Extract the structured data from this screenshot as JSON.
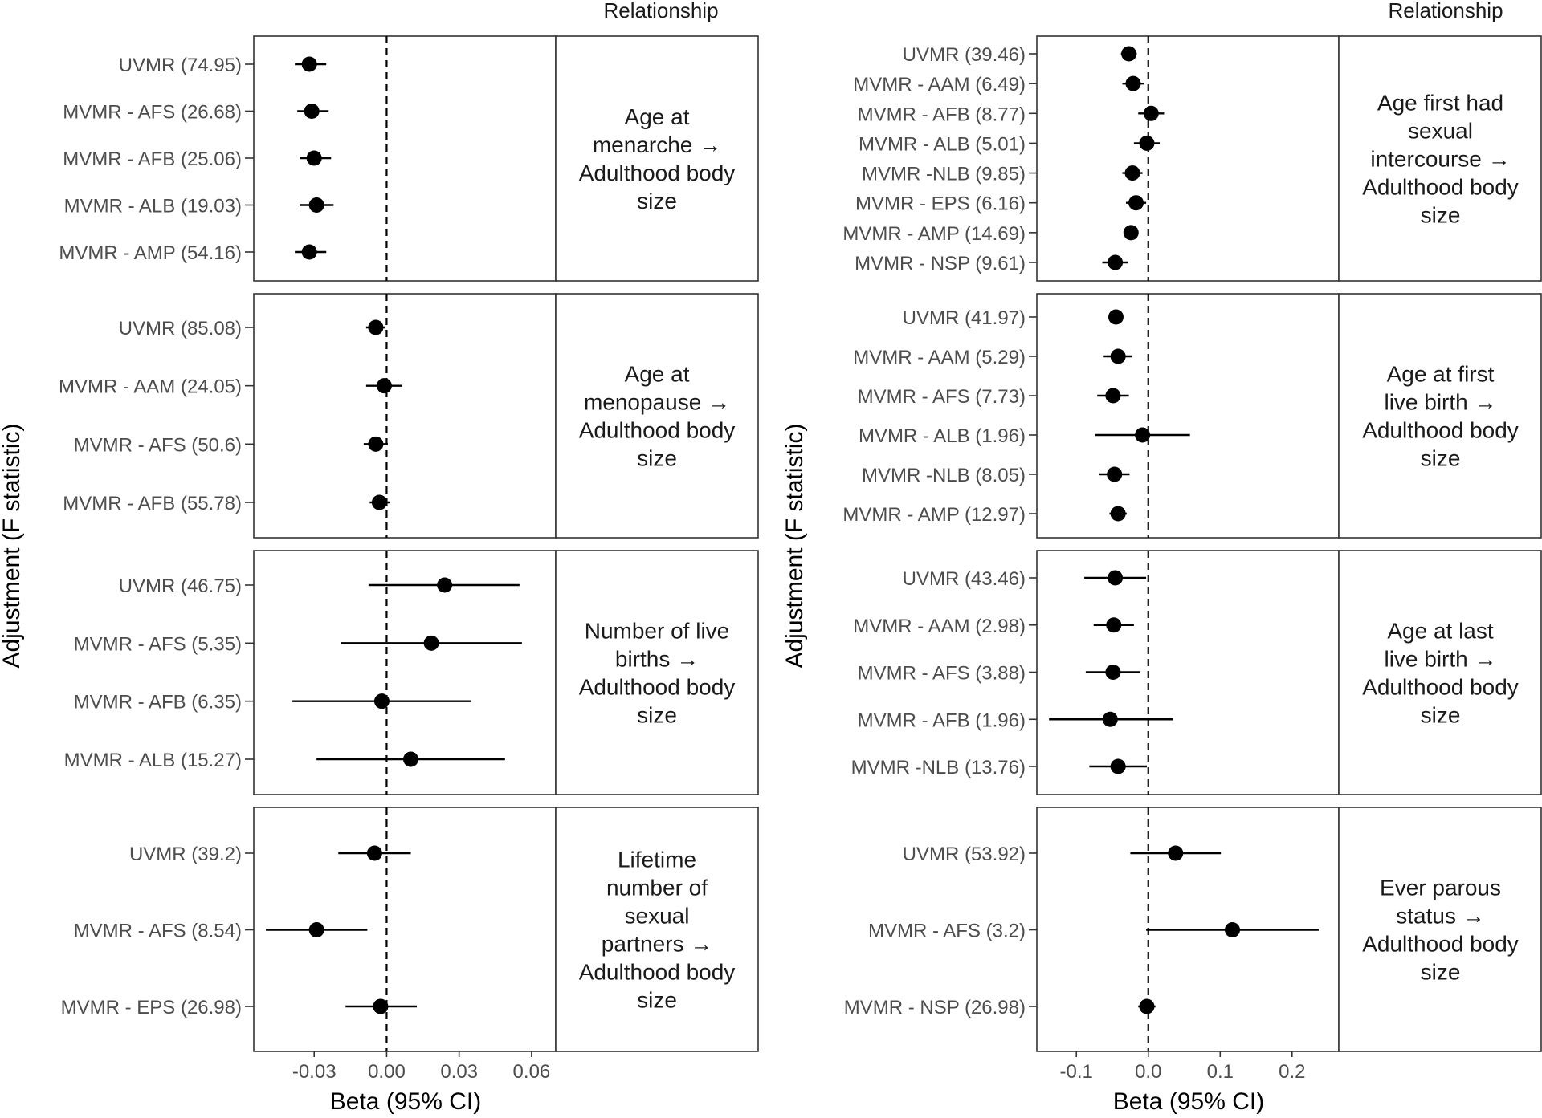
{
  "figure": {
    "y_axis_label": "Adjustment (F statistic)",
    "x_axis_label": "Beta (95% CI)",
    "strip_header": "Relationship"
  },
  "chart_data": [
    {
      "type": "forest",
      "column": "left",
      "xlim": [
        -0.055,
        0.07
      ],
      "xticks": [
        -0.03,
        0.0,
        0.03,
        0.06
      ],
      "xtick_labels": [
        "-0.03",
        "0.00",
        "0.03",
        "0.06"
      ],
      "reference_line": 0,
      "xlabel": "Beta (95% CI)",
      "ylabel": "Adjustment (F statistic)",
      "panels": [
        {
          "relationship": "Age at menarche → Adulthood body size",
          "strip_lines": [
            "Age at",
            "menarche →",
            "Adulthood body",
            "size"
          ],
          "rows": [
            {
              "label": "UVMR (74.95)",
              "beta": -0.032,
              "lo": -0.038,
              "hi": -0.025
            },
            {
              "label": "MVMR - AFS (26.68)",
              "beta": -0.031,
              "lo": -0.037,
              "hi": -0.024
            },
            {
              "label": "MVMR - AFB (25.06)",
              "beta": -0.03,
              "lo": -0.036,
              "hi": -0.023
            },
            {
              "label": "MVMR - ALB (19.03)",
              "beta": -0.029,
              "lo": -0.036,
              "hi": -0.022
            },
            {
              "label": "MVMR - AMP (54.16)",
              "beta": -0.032,
              "lo": -0.038,
              "hi": -0.025
            }
          ]
        },
        {
          "relationship": "Age at menopause → Adulthood body size",
          "strip_lines": [
            "Age at",
            "menopause →",
            "Adulthood body",
            "size"
          ],
          "rows": [
            {
              "label": "UVMR (85.08)",
              "beta": -0.0045,
              "lo": -0.0085,
              "hi": -0.0005
            },
            {
              "label": "MVMR - AAM (24.05)",
              "beta": -0.001,
              "lo": -0.0085,
              "hi": 0.0065
            },
            {
              "label": "MVMR - AFS (50.6)",
              "beta": -0.0045,
              "lo": -0.0095,
              "hi": 0.0005
            },
            {
              "label": "MVMR - AFB (55.78)",
              "beta": -0.003,
              "lo": -0.007,
              "hi": 0.0015
            }
          ]
        },
        {
          "relationship": "Number of live births → Adulthood body size",
          "strip_lines": [
            "Number of live",
            "births →",
            "Adulthood body",
            "size"
          ],
          "rows": [
            {
              "label": "UVMR (46.75)",
              "beta": 0.024,
              "lo": -0.0075,
              "hi": 0.055
            },
            {
              "label": "MVMR - AFS (5.35)",
              "beta": 0.0185,
              "lo": -0.019,
              "hi": 0.056
            },
            {
              "label": "MVMR - AFB (6.35)",
              "beta": -0.002,
              "lo": -0.039,
              "hi": 0.035
            },
            {
              "label": "MVMR - ALB (15.27)",
              "beta": 0.01,
              "lo": -0.029,
              "hi": 0.049
            }
          ]
        },
        {
          "relationship": "Lifetime number of sexual partners → Adulthood body size",
          "strip_lines": [
            "Lifetime",
            "number of",
            "sexual",
            "partners →",
            "Adulthood body",
            "size"
          ],
          "rows": [
            {
              "label": "UVMR (39.2)",
              "beta": -0.005,
              "lo": -0.02,
              "hi": 0.01
            },
            {
              "label": "MVMR - AFS (8.54)",
              "beta": -0.029,
              "lo": -0.05,
              "hi": -0.008
            },
            {
              "label": "MVMR - EPS (26.98)",
              "beta": -0.0025,
              "lo": -0.017,
              "hi": 0.0125
            }
          ]
        }
      ]
    },
    {
      "type": "forest",
      "column": "right",
      "xlim": [
        -0.155,
        0.265
      ],
      "xticks": [
        -0.1,
        0.0,
        0.1,
        0.2
      ],
      "xtick_labels": [
        "-0.1",
        "0.0",
        "0.1",
        "0.2"
      ],
      "reference_line": 0,
      "xlabel": "Beta (95% CI)",
      "ylabel": "Adjustment (F statistic)",
      "panels": [
        {
          "relationship": "Age first had sexual intercourse → Adulthood body size",
          "strip_lines": [
            "Age first had",
            "sexual",
            "intercourse →",
            "Adulthood body",
            "size"
          ],
          "rows": [
            {
              "label": "UVMR (39.46)",
              "beta": -0.027,
              "lo": -0.038,
              "hi": -0.016
            },
            {
              "label": "MVMR - AAM (6.49)",
              "beta": -0.021,
              "lo": -0.036,
              "hi": -0.006
            },
            {
              "label": "MVMR - AFB (8.77)",
              "beta": 0.004,
              "lo": -0.014,
              "hi": 0.022
            },
            {
              "label": "MVMR - ALB (5.01)",
              "beta": -0.002,
              "lo": -0.02,
              "hi": 0.016
            },
            {
              "label": "MVMR -NLB (9.85)",
              "beta": -0.022,
              "lo": -0.036,
              "hi": -0.008
            },
            {
              "label": "MVMR - EPS (6.16)",
              "beta": -0.017,
              "lo": -0.031,
              "hi": -0.003
            },
            {
              "label": "MVMR - AMP (14.69)",
              "beta": -0.024,
              "lo": -0.033,
              "hi": -0.015
            },
            {
              "label": "MVMR - NSP (9.61)",
              "beta": -0.046,
              "lo": -0.064,
              "hi": -0.028
            }
          ]
        },
        {
          "relationship": "Age at first live birth → Adulthood body size",
          "strip_lines": [
            "Age at first",
            "live birth →",
            "Adulthood body",
            "size"
          ],
          "rows": [
            {
              "label": "UVMR (41.97)",
              "beta": -0.045,
              "lo": -0.054,
              "hi": -0.036
            },
            {
              "label": "MVMR - AAM (5.29)",
              "beta": -0.042,
              "lo": -0.062,
              "hi": -0.022
            },
            {
              "label": "MVMR - AFS (7.73)",
              "beta": -0.049,
              "lo": -0.071,
              "hi": -0.027
            },
            {
              "label": "MVMR - ALB (1.96)",
              "beta": -0.008,
              "lo": -0.074,
              "hi": 0.058
            },
            {
              "label": "MVMR -NLB (8.05)",
              "beta": -0.047,
              "lo": -0.068,
              "hi": -0.026
            },
            {
              "label": "MVMR - AMP (12.97)",
              "beta": -0.042,
              "lo": -0.054,
              "hi": -0.03
            }
          ]
        },
        {
          "relationship": "Age at last live birth → Adulthood body size",
          "strip_lines": [
            "Age at last",
            "live birth →",
            "Adulthood body",
            "size"
          ],
          "rows": [
            {
              "label": "UVMR (43.46)",
              "beta": -0.046,
              "lo": -0.089,
              "hi": -0.003
            },
            {
              "label": "MVMR - AAM (2.98)",
              "beta": -0.048,
              "lo": -0.076,
              "hi": -0.02
            },
            {
              "label": "MVMR - AFS (3.88)",
              "beta": -0.049,
              "lo": -0.087,
              "hi": -0.011
            },
            {
              "label": "MVMR - AFB (1.96)",
              "beta": -0.053,
              "lo": -0.138,
              "hi": 0.034
            },
            {
              "label": "MVMR -NLB (13.76)",
              "beta": -0.042,
              "lo": -0.082,
              "hi": -0.002
            }
          ]
        },
        {
          "relationship": "Ever parous status → Adulthood body size",
          "strip_lines": [
            "Ever parous",
            "status →",
            "Adulthood body",
            "size"
          ],
          "rows": [
            {
              "label": "UVMR (53.92)",
              "beta": 0.038,
              "lo": -0.025,
              "hi": 0.101
            },
            {
              "label": "MVMR - AFS (3.2)",
              "beta": 0.117,
              "lo": -0.003,
              "hi": 0.237
            },
            {
              "label": "MVMR - NSP (26.98)",
              "beta": -0.002,
              "lo": -0.014,
              "hi": 0.01
            }
          ]
        }
      ]
    }
  ]
}
